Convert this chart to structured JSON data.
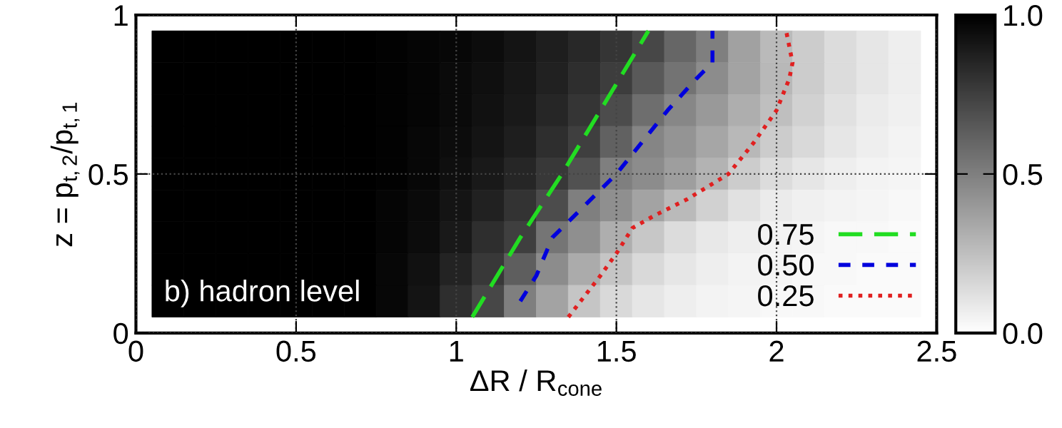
{
  "chart_data": {
    "type": "heatmap",
    "xlabel": "ΔR / R$_{cone}$",
    "ylabel": "z = p$_{t,2}$/p$_{t,1}$",
    "annotations": [
      "b) hadron level"
    ],
    "x": [
      0.1,
      0.2,
      0.3,
      0.4,
      0.5,
      0.6,
      0.7,
      0.8,
      0.9,
      1.0,
      1.1,
      1.2,
      1.3,
      1.4,
      1.5,
      1.6,
      1.7,
      1.8,
      1.9,
      2.0,
      2.1,
      2.2,
      2.3,
      2.4
    ],
    "y": [
      0.9,
      0.8,
      0.7,
      0.6,
      0.5,
      0.4,
      0.3,
      0.2,
      0.1
    ],
    "cells": [
      [
        1,
        1,
        1,
        1,
        1,
        1,
        1,
        0.99,
        0.98,
        0.97,
        0.95,
        0.92,
        0.88,
        0.84,
        0.79,
        0.72,
        0.6,
        0.5,
        0.37,
        0.27,
        0.2,
        0.14,
        0.1,
        0.07
      ],
      [
        1,
        1,
        1,
        1,
        1,
        1,
        1,
        0.99,
        0.98,
        0.96,
        0.94,
        0.91,
        0.87,
        0.82,
        0.76,
        0.65,
        0.55,
        0.45,
        0.36,
        0.28,
        0.2,
        0.14,
        0.1,
        0.07
      ],
      [
        1,
        1,
        1,
        1,
        1,
        1,
        1,
        0.99,
        0.98,
        0.96,
        0.93,
        0.9,
        0.85,
        0.79,
        0.7,
        0.57,
        0.47,
        0.4,
        0.32,
        0.25,
        0.18,
        0.12,
        0.08,
        0.06
      ],
      [
        1,
        1,
        1,
        1,
        1,
        1,
        1,
        0.99,
        0.97,
        0.95,
        0.92,
        0.88,
        0.82,
        0.75,
        0.62,
        0.48,
        0.42,
        0.35,
        0.28,
        0.2,
        0.15,
        0.1,
        0.07,
        0.05
      ],
      [
        1,
        1,
        1,
        1,
        1,
        1,
        1,
        0.99,
        0.97,
        0.94,
        0.9,
        0.85,
        0.78,
        0.68,
        0.5,
        0.45,
        0.38,
        0.3,
        0.2,
        0.14,
        0.1,
        0.07,
        0.05,
        0.04
      ],
      [
        1,
        1,
        1,
        1,
        1,
        1,
        1,
        0.98,
        0.96,
        0.92,
        0.87,
        0.8,
        0.7,
        0.5,
        0.44,
        0.36,
        0.27,
        0.18,
        0.12,
        0.08,
        0.06,
        0.05,
        0.04,
        0.03
      ],
      [
        1,
        1,
        1,
        1,
        1,
        1,
        1,
        0.98,
        0.95,
        0.9,
        0.82,
        0.75,
        0.54,
        0.44,
        0.32,
        0.22,
        0.14,
        0.09,
        0.07,
        0.05,
        0.04,
        0.03,
        0.03,
        0.02
      ],
      [
        1,
        1,
        1,
        1,
        1,
        1,
        1,
        0.97,
        0.93,
        0.86,
        0.78,
        0.63,
        0.45,
        0.33,
        0.23,
        0.15,
        0.1,
        0.07,
        0.05,
        0.04,
        0.03,
        0.03,
        0.02,
        0.02
      ],
      [
        1,
        1,
        1,
        1,
        1,
        1,
        1,
        0.97,
        0.92,
        0.82,
        0.72,
        0.5,
        0.36,
        0.23,
        0.15,
        0.1,
        0.07,
        0.05,
        0.04,
        0.03,
        0.03,
        0.02,
        0.02,
        0.02
      ]
    ],
    "clim": [
      0,
      1
    ],
    "cticks": [
      {
        "value": 0,
        "label": "0.0"
      },
      {
        "value": 0.5,
        "label": "0.5"
      },
      {
        "value": 1,
        "label": "1.0"
      }
    ],
    "series": [
      {
        "name": "0.75",
        "type": "line",
        "color": "#22dd22",
        "line_style": "dashed",
        "x": [
          1.05,
          1.2,
          1.33,
          1.45,
          1.6
        ],
        "values": [
          0.05,
          0.3,
          0.5,
          0.7,
          0.95
        ]
      },
      {
        "name": "0.50",
        "type": "line",
        "color": "#0000dd",
        "line_style": "dashed",
        "x": [
          1.2,
          1.25,
          1.3,
          1.38,
          1.5,
          1.58,
          1.66,
          1.75,
          1.8,
          1.8
        ],
        "values": [
          0.1,
          0.18,
          0.3,
          0.38,
          0.5,
          0.6,
          0.7,
          0.8,
          0.85,
          0.95
        ]
      },
      {
        "name": "0.25",
        "type": "line",
        "color": "#e02020",
        "line_style": "dotted",
        "x": [
          1.35,
          1.45,
          1.5,
          1.55,
          1.62,
          1.72,
          1.85,
          1.93,
          2.0,
          2.04,
          2.05,
          2.03
        ],
        "values": [
          0.05,
          0.18,
          0.25,
          0.33,
          0.37,
          0.42,
          0.5,
          0.6,
          0.7,
          0.8,
          0.85,
          0.95
        ]
      }
    ],
    "xlim": [
      0,
      2.5
    ],
    "ylim": [
      0,
      1
    ],
    "xticks": [
      0,
      0.5,
      1,
      1.5,
      2,
      2.5
    ],
    "yticks": [
      0,
      0.5,
      1
    ],
    "grid": true,
    "legend": "bottom right"
  }
}
